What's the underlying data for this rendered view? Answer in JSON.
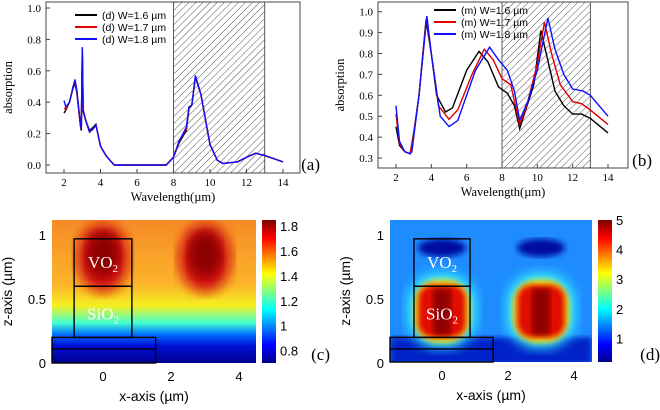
{
  "chart_data": [
    {
      "panel": "(a)",
      "type": "line",
      "xlabel": "Wavelength(µm)",
      "ylabel": "absorption",
      "xlim": [
        1,
        15
      ],
      "ylim": [
        -0.05,
        1.05
      ],
      "xticks": [
        2,
        4,
        6,
        8,
        10,
        12,
        14
      ],
      "yticks": [
        0.0,
        0.2,
        0.4,
        0.6,
        0.8,
        1.0
      ],
      "ytick_labels": [
        "0.0",
        "0.2",
        "0.4",
        "0.6",
        "0.8",
        "1.0"
      ],
      "hatched_region": [
        8,
        13
      ],
      "legend_position": "top-left",
      "series": [
        {
          "name": "(d) W=1.6 µm",
          "color": "#000000",
          "x": [
            2,
            2.1,
            2.3,
            2.5,
            2.6,
            2.7,
            2.9,
            2.95,
            3.0,
            3.05,
            3.2,
            3.4,
            3.6,
            3.75,
            3.85,
            4.0,
            4.3,
            4.6,
            4.75,
            7.6,
            8.0,
            8.3,
            8.7,
            8.85,
            9.0,
            9.2,
            9.5,
            10,
            10.4,
            10.7,
            11.5,
            12.0,
            12.5,
            13,
            14
          ],
          "y": [
            0.33,
            0.35,
            0.4,
            0.49,
            0.52,
            0.46,
            0.25,
            0.22,
            0.74,
            0.34,
            0.28,
            0.22,
            0.24,
            0.26,
            0.2,
            0.12,
            0.06,
            0.02,
            0.0,
            0.0,
            0.05,
            0.14,
            0.22,
            0.36,
            0.38,
            0.56,
            0.45,
            0.13,
            0.03,
            0.01,
            0.02,
            0.05,
            0.075,
            0.06,
            0.02
          ]
        },
        {
          "name": "(d) W=1.7 µm",
          "color": "#e00000",
          "x": [
            2,
            2.1,
            2.3,
            2.5,
            2.6,
            2.7,
            2.9,
            2.95,
            3.0,
            3.05,
            3.2,
            3.4,
            3.6,
            3.75,
            3.85,
            4.0,
            4.3,
            4.6,
            4.75,
            7.6,
            8.0,
            8.3,
            8.7,
            8.85,
            9.0,
            9.2,
            9.5,
            10,
            10.4,
            10.7,
            11.5,
            12.0,
            12.5,
            13,
            14
          ],
          "y": [
            0.36,
            0.36,
            0.4,
            0.5,
            0.53,
            0.47,
            0.25,
            0.23,
            0.75,
            0.35,
            0.28,
            0.21,
            0.23,
            0.255,
            0.2,
            0.12,
            0.06,
            0.02,
            0.0,
            0.0,
            0.05,
            0.15,
            0.23,
            0.37,
            0.38,
            0.565,
            0.45,
            0.13,
            0.03,
            0.01,
            0.02,
            0.05,
            0.075,
            0.06,
            0.02
          ]
        },
        {
          "name": "(d) W=1.8 µm",
          "color": "#1010ff",
          "x": [
            2,
            2.1,
            2.3,
            2.5,
            2.6,
            2.7,
            2.9,
            2.95,
            3.0,
            3.05,
            3.2,
            3.4,
            3.6,
            3.75,
            3.85,
            4.0,
            4.3,
            4.6,
            4.75,
            7.6,
            8.0,
            8.3,
            8.7,
            8.85,
            9.0,
            9.2,
            9.5,
            10,
            10.4,
            10.7,
            11.5,
            12.0,
            12.5,
            13,
            14
          ],
          "y": [
            0.41,
            0.37,
            0.4,
            0.5,
            0.545,
            0.48,
            0.26,
            0.23,
            0.75,
            0.35,
            0.28,
            0.21,
            0.23,
            0.255,
            0.2,
            0.12,
            0.06,
            0.02,
            0.0,
            0.0,
            0.05,
            0.15,
            0.24,
            0.37,
            0.38,
            0.57,
            0.45,
            0.13,
            0.03,
            0.01,
            0.02,
            0.05,
            0.075,
            0.06,
            0.02
          ]
        }
      ]
    },
    {
      "panel": "(b)",
      "type": "line",
      "xlabel": "Wavelength(µm)",
      "ylabel": "absorption",
      "xlim": [
        1,
        15
      ],
      "ylim": [
        0.27,
        1.05
      ],
      "xticks": [
        2,
        4,
        6,
        8,
        10,
        12,
        14
      ],
      "yticks": [
        0.3,
        0.4,
        0.5,
        0.6,
        0.7,
        0.8,
        0.9,
        1.0
      ],
      "ytick_labels": [
        "0.3",
        "0.4",
        "0.5",
        "0.6",
        "0.7",
        "0.8",
        "0.9",
        "1.0"
      ],
      "hatched_region": [
        8,
        13
      ],
      "legend_position": "top-center",
      "series": [
        {
          "name": "(m) W=1.6 µm",
          "color": "#000000",
          "x": [
            2,
            2.2,
            2.5,
            2.8,
            3.0,
            3.3,
            3.7,
            4.0,
            4.3,
            4.8,
            5.2,
            6,
            6.7,
            7.2,
            7.8,
            8.3,
            8.7,
            9.0,
            9.3,
            9.8,
            10.2,
            10.5,
            11,
            11.5,
            12,
            12.5,
            13,
            14
          ],
          "y": [
            0.45,
            0.36,
            0.33,
            0.32,
            0.42,
            0.6,
            0.96,
            0.8,
            0.6,
            0.52,
            0.54,
            0.72,
            0.81,
            0.76,
            0.64,
            0.61,
            0.55,
            0.44,
            0.52,
            0.65,
            0.91,
            0.8,
            0.62,
            0.55,
            0.51,
            0.51,
            0.49,
            0.42
          ]
        },
        {
          "name": "(m) W=1.7 µm",
          "color": "#e00000",
          "x": [
            2,
            2.2,
            2.5,
            2.8,
            3.0,
            3.3,
            3.72,
            4.0,
            4.4,
            5,
            5.5,
            6.3,
            7.0,
            7.5,
            8.0,
            8.5,
            9.0,
            9.4,
            10.0,
            10.4,
            10.8,
            11.3,
            12,
            12.5,
            13,
            14
          ],
          "y": [
            0.51,
            0.37,
            0.33,
            0.32,
            0.41,
            0.6,
            0.97,
            0.8,
            0.55,
            0.485,
            0.53,
            0.7,
            0.82,
            0.77,
            0.68,
            0.65,
            0.46,
            0.55,
            0.75,
            0.95,
            0.8,
            0.65,
            0.57,
            0.56,
            0.53,
            0.46
          ]
        },
        {
          "name": "(m) W=1.8 µm",
          "color": "#1010ff",
          "x": [
            2,
            2.2,
            2.5,
            2.8,
            2.9,
            3.0,
            3.3,
            3.75,
            4.0,
            4.5,
            5,
            5.5,
            6.5,
            7.3,
            7.8,
            8.3,
            8.7,
            9.0,
            9.5,
            10.0,
            10.6,
            11,
            11.5,
            12,
            12.6,
            13,
            14
          ],
          "y": [
            0.55,
            0.38,
            0.33,
            0.32,
            0.33,
            0.4,
            0.6,
            0.98,
            0.8,
            0.5,
            0.45,
            0.48,
            0.72,
            0.83,
            0.77,
            0.72,
            0.62,
            0.48,
            0.58,
            0.72,
            0.97,
            0.82,
            0.7,
            0.63,
            0.62,
            0.6,
            0.5
          ]
        }
      ]
    },
    {
      "panel": "(c)",
      "type": "heatmap",
      "xlabel": "x-axis (µm)",
      "ylabel": "z-axis (µm)",
      "xlim": [
        -1.5,
        4.5
      ],
      "ylim": [
        0,
        1.1
      ],
      "xticks": [
        0,
        2,
        4
      ],
      "yticks": [
        0,
        0.5,
        1
      ],
      "ytick_labels": [
        "0",
        "0.5",
        "1"
      ],
      "colormap": "jet",
      "colorbar_range": [
        0.7,
        1.85
      ],
      "colorbar_ticks": [
        0.8,
        1,
        1.2,
        1.4,
        1.6,
        1.8
      ],
      "colorbar_tick_labels": [
        "0.8",
        "1",
        "1.2",
        "1.4",
        "1.6",
        "1.8"
      ],
      "labels": {
        "top": "VO",
        "bottom": "SiO",
        "sub": "2"
      }
    },
    {
      "panel": "(d)",
      "type": "heatmap",
      "xlabel": "x-axis (µm)",
      "ylabel": "z-axis (µm)",
      "xlim": [
        -1.6,
        4.5
      ],
      "ylim": [
        0,
        1.1
      ],
      "xticks": [
        0,
        2,
        4
      ],
      "yticks": [
        0,
        0.5,
        1
      ],
      "ytick_labels": [
        "0",
        "0.5",
        "1"
      ],
      "colormap": "jet",
      "colorbar_range": [
        0.2,
        5
      ],
      "colorbar_ticks": [
        1,
        2,
        3,
        4,
        5
      ],
      "colorbar_tick_labels": [
        "1",
        "2",
        "3",
        "4",
        "5"
      ],
      "labels": {
        "top": "VO",
        "bottom": "SiO",
        "sub": "2"
      }
    }
  ]
}
